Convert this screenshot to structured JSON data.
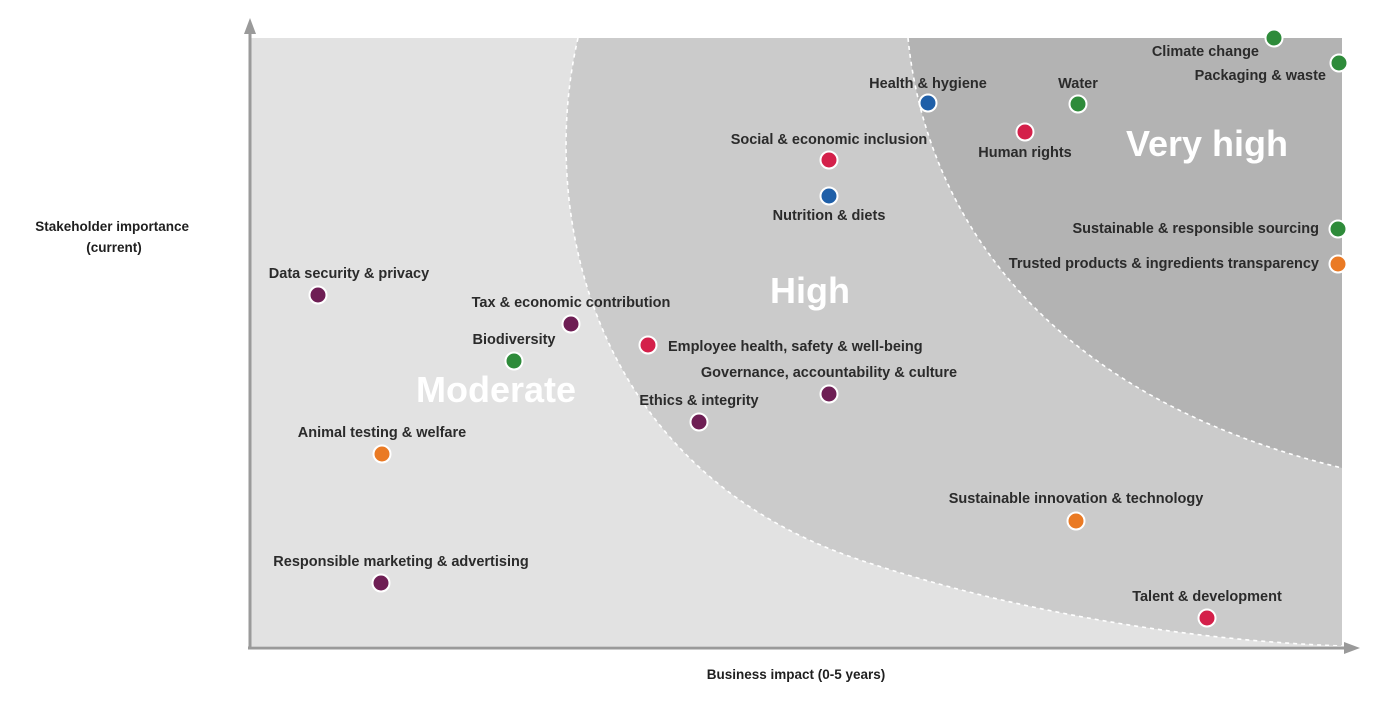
{
  "chart_data": {
    "type": "scatter",
    "title": "",
    "xlabel": "Business impact (0-5 years)",
    "ylabel_lines": [
      "Stakeholder importance",
      "(current)"
    ],
    "zones": [
      {
        "name": "Moderate"
      },
      {
        "name": "High"
      },
      {
        "name": "Very high"
      }
    ],
    "colors": {
      "green": "#2e8b3a",
      "red": "#d4204a",
      "blue": "#1f5fa8",
      "purple": "#6e1e54",
      "orange": "#ea7a24",
      "zone_moderate": "#e2e2e2",
      "zone_high": "#cbcbcb",
      "zone_very_high": "#b3b3b3",
      "axis": "#9a9a9a"
    },
    "points": [
      {
        "label": "Climate change",
        "color": "green"
      },
      {
        "label": "Packaging & waste",
        "color": "green"
      },
      {
        "label": "Health & hygiene",
        "color": "blue"
      },
      {
        "label": "Water",
        "color": "green"
      },
      {
        "label": "Human rights",
        "color": "red"
      },
      {
        "label": "Social & economic inclusion",
        "color": "red"
      },
      {
        "label": "Nutrition & diets",
        "color": "blue"
      },
      {
        "label": "Sustainable & responsible sourcing",
        "color": "green"
      },
      {
        "label": "Trusted products & ingredients transparency",
        "color": "orange"
      },
      {
        "label": "Data security & privacy",
        "color": "purple"
      },
      {
        "label": "Tax & economic contribution",
        "color": "purple"
      },
      {
        "label": "Biodiversity",
        "color": "green"
      },
      {
        "label": "Employee health, safety & well-being",
        "color": "red"
      },
      {
        "label": "Governance, accountability & culture",
        "color": "purple"
      },
      {
        "label": "Ethics & integrity",
        "color": "purple"
      },
      {
        "label": "Animal testing & welfare",
        "color": "orange"
      },
      {
        "label": "Sustainable innovation & technology",
        "color": "orange"
      },
      {
        "label": "Responsible marketing & advertising",
        "color": "purple"
      },
      {
        "label": "Talent & development",
        "color": "red"
      }
    ]
  }
}
